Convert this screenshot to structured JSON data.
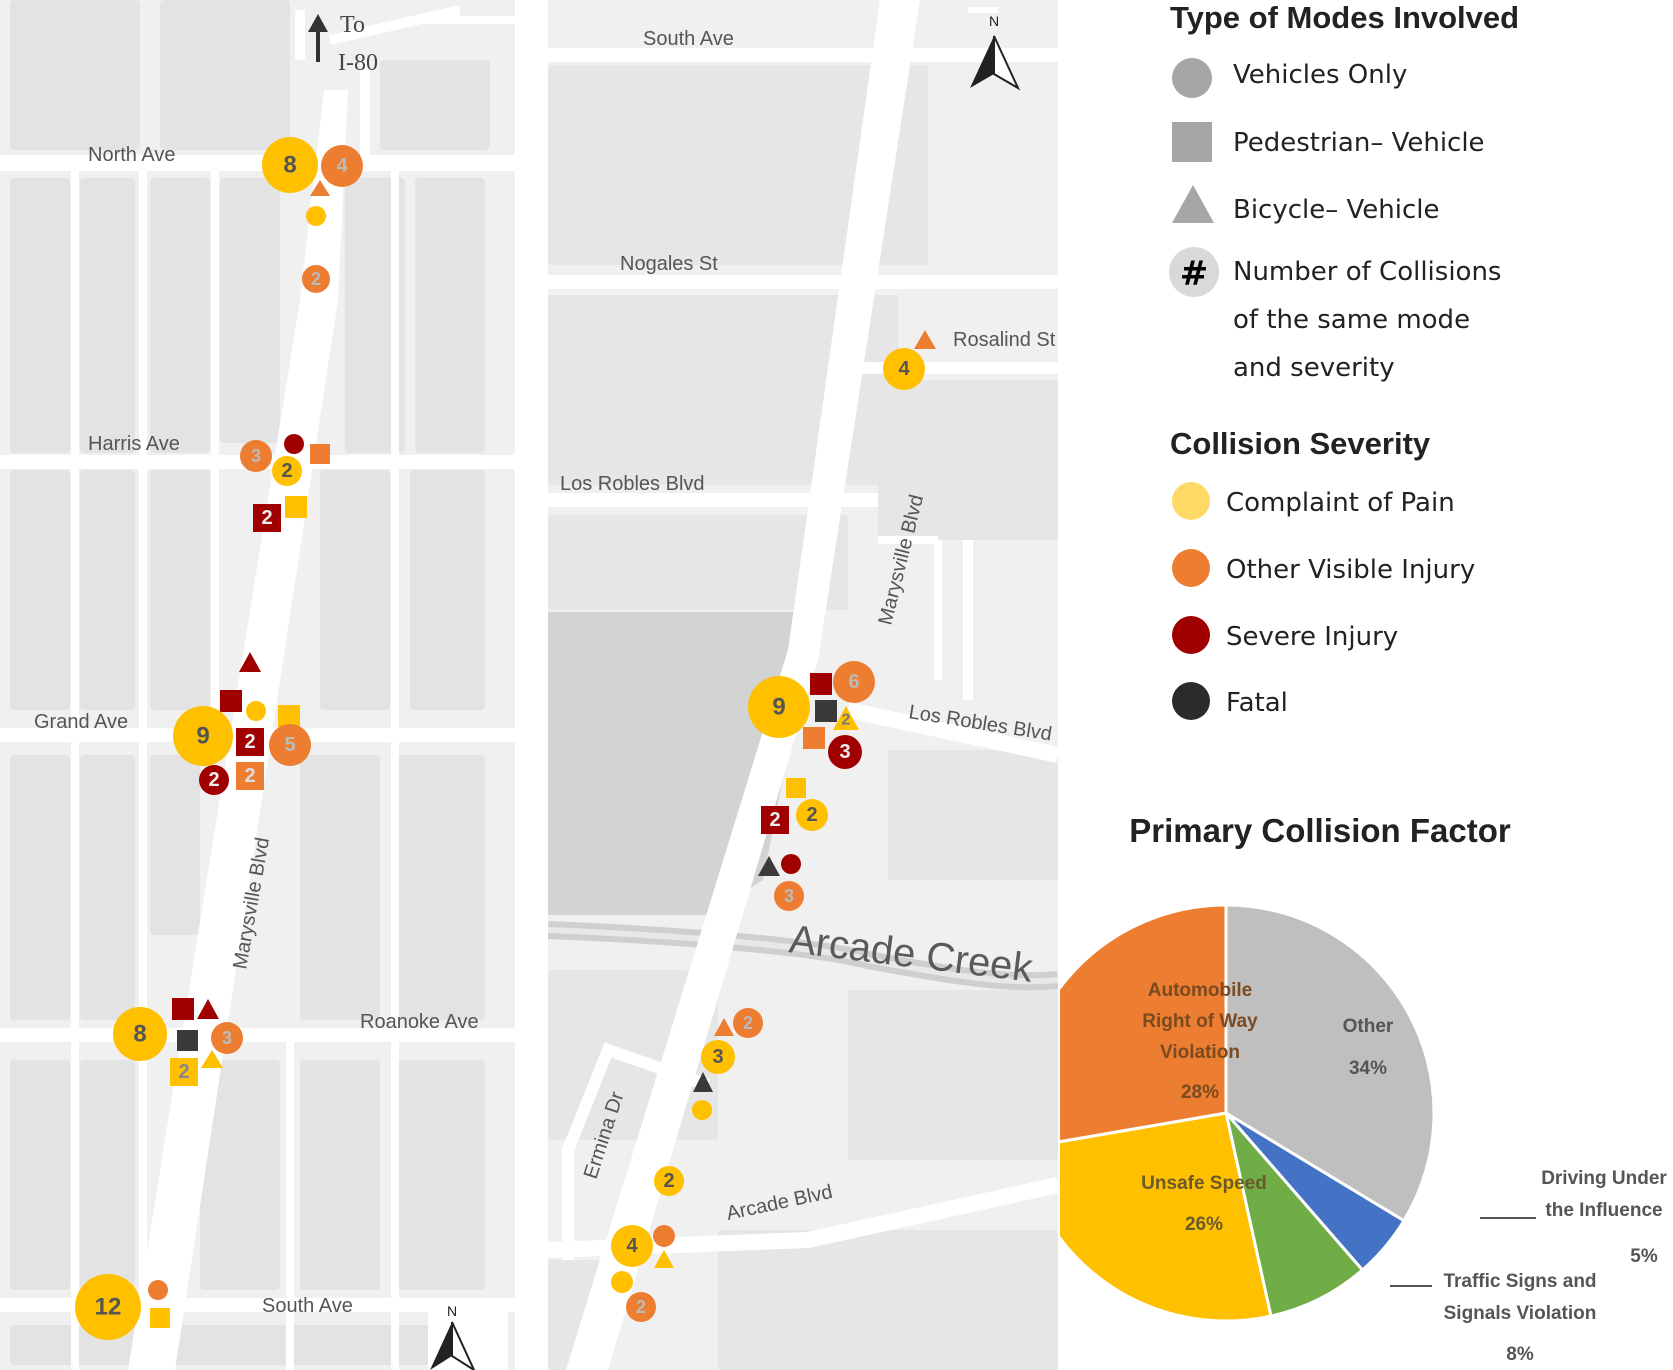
{
  "left_map": {
    "to_label_1": "To",
    "to_label_2": "I-80",
    "north": "N",
    "streets": {
      "north_ave": "North Ave",
      "harris_ave": "Harris Ave",
      "grand_ave": "Grand Ave",
      "roanoke_ave": "Roanoke Ave",
      "south_ave": "South Ave",
      "marysville_blvd": "Marysville Blvd"
    },
    "markers": {
      "m1": "8",
      "m2": "4",
      "m3": "2",
      "m4": "3",
      "m5": "2",
      "m6": "2",
      "m7": "9",
      "m8": "2",
      "m9": "5",
      "m10": "2",
      "m11": "2",
      "m12": "8",
      "m13": "3",
      "m14": "2",
      "m15": "12"
    }
  },
  "mid_map": {
    "north": "N",
    "streets": {
      "south_ave": "South Ave",
      "nogales_st": "Nogales St",
      "rosalind_st": "Rosalind St",
      "los_robles_blvd": "Los Robles Blvd",
      "los_robles_blvd_2": "Los Robles Blvd",
      "marysville_blvd": "Marysville Blvd",
      "arcade_creek": "Arcade Creek",
      "ermina_dr": "Ermina Dr",
      "arcade_blvd": "Arcade Blvd"
    },
    "markers": {
      "m1": "4",
      "m2": "9",
      "m3": "6",
      "m4": "2",
      "m5": "3",
      "m6": "2",
      "m7": "2",
      "m8": "3",
      "m9": "2",
      "m10": "3",
      "m11": "2",
      "m12": "4",
      "m13": "2"
    }
  },
  "legend": {
    "modes_title": "Type of Modes Involved",
    "vehicles_only": "Vehicles Only",
    "ped_vehicle": "Pedestrian– Vehicle",
    "bike_vehicle": "Bicycle– Vehicle",
    "hash_symbol": "#",
    "number_line1": "Number of Collisions",
    "number_line2": "of the same mode",
    "number_line3": "and severity",
    "severity_title": "Collision Severity",
    "complaint": "Complaint of Pain",
    "other_visible": "Other Visible Injury",
    "severe": "Severe Injury",
    "fatal": "Fatal"
  },
  "colors": {
    "complaint": "#FFC000",
    "other_visible": "#ED7D31",
    "severe": "#A00000",
    "fatal": "#3A3A3A",
    "legend_gray": "#A6A6A6"
  },
  "chart_data": {
    "type": "pie",
    "title": "Primary Collision Factor",
    "slices": [
      {
        "name": "Other",
        "value": 34,
        "label": "34%",
        "color": "#BFBFBF"
      },
      {
        "name": "Driving Under the Influence",
        "value": 5,
        "label": "5%",
        "color": "#4472C4"
      },
      {
        "name": "Traffic Signs and Signals Violation",
        "value": 8,
        "label": "8%",
        "color": "#70AD47"
      },
      {
        "name": "Unsafe Speed",
        "value": 26,
        "label": "26%",
        "color": "#FFC000"
      },
      {
        "name": "Automobile Right of Way Violation",
        "value": 28,
        "label": "28%",
        "color": "#ED7D31"
      }
    ],
    "label_lines": {
      "other_1": "Other",
      "dui_1": "Driving Under",
      "dui_2": "the Influence",
      "traffic_1": "Traffic Signs and",
      "traffic_2": "Signals Violation",
      "speed_1": "Unsafe Speed",
      "auto_1": "Automobile",
      "auto_2": "Right of Way",
      "auto_3": "Violation"
    }
  }
}
